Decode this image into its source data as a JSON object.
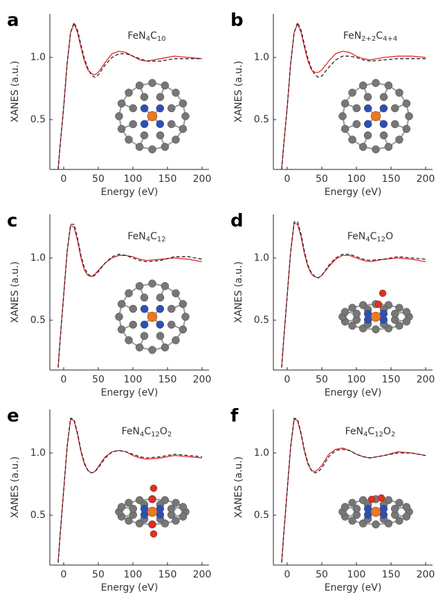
{
  "chart_data": [
    {
      "type": "line",
      "panel": "a",
      "annotation": "FeN4C10",
      "xlabel": "Energy (eV)",
      "ylabel": "XANES (a.u.)",
      "x": [
        -8,
        -5,
        0,
        5,
        10,
        15,
        20,
        25,
        30,
        35,
        40,
        45,
        50,
        60,
        70,
        80,
        90,
        100,
        110,
        120,
        140,
        160,
        180,
        200
      ],
      "series": [
        {
          "color": "#e8242a",
          "dash": false,
          "values": [
            0.1,
            0.3,
            0.6,
            0.95,
            1.2,
            1.27,
            1.2,
            1.08,
            0.97,
            0.9,
            0.87,
            0.86,
            0.88,
            0.96,
            1.03,
            1.05,
            1.04,
            1.01,
            0.98,
            0.97,
            0.99,
            1.01,
            1.0,
            0.99
          ]
        },
        {
          "color": "#222222",
          "dash": true,
          "values": [
            0.1,
            0.3,
            0.6,
            0.95,
            1.2,
            1.28,
            1.22,
            1.1,
            0.99,
            0.91,
            0.86,
            0.84,
            0.86,
            0.94,
            1.0,
            1.03,
            1.03,
            1.01,
            0.99,
            0.97,
            0.97,
            0.99,
            0.99,
            0.99
          ]
        }
      ],
      "xlim": [
        -20,
        210
      ],
      "ylim": [
        0.1,
        1.35
      ],
      "xticks": [
        0,
        50,
        100,
        150,
        200
      ],
      "yticks": [
        0.5,
        {
          "value": 1,
          "label": "1.0"
        }
      ]
    },
    {
      "type": "line",
      "panel": "b",
      "annotation": "FeN2+2C4+4",
      "xlabel": "Energy (eV)",
      "ylabel": "XANES (a.u.)",
      "x": [
        -8,
        -5,
        0,
        5,
        10,
        15,
        20,
        25,
        30,
        35,
        40,
        45,
        50,
        60,
        70,
        80,
        90,
        100,
        110,
        120,
        140,
        160,
        180,
        200
      ],
      "series": [
        {
          "color": "#e8242a",
          "dash": false,
          "values": [
            0.1,
            0.3,
            0.6,
            0.95,
            1.2,
            1.27,
            1.2,
            1.08,
            0.97,
            0.9,
            0.88,
            0.88,
            0.9,
            0.97,
            1.03,
            1.05,
            1.04,
            1.01,
            0.99,
            0.98,
            1.0,
            1.01,
            1.01,
            1.0
          ]
        },
        {
          "color": "#222222",
          "dash": true,
          "values": [
            0.1,
            0.3,
            0.6,
            0.95,
            1.2,
            1.28,
            1.22,
            1.1,
            0.99,
            0.91,
            0.86,
            0.84,
            0.85,
            0.92,
            0.98,
            1.01,
            1.01,
            1.0,
            0.98,
            0.97,
            0.98,
            0.99,
            0.99,
            0.99
          ]
        }
      ],
      "xlim": [
        -20,
        210
      ],
      "ylim": [
        0.1,
        1.35
      ],
      "xticks": [
        0,
        50,
        100,
        150,
        200
      ],
      "yticks": [
        0.5,
        {
          "value": 1,
          "label": "1.0"
        }
      ]
    },
    {
      "type": "line",
      "panel": "c",
      "annotation": "FeN4C12",
      "xlabel": "Energy (eV)",
      "ylabel": "XANES (a.u.)",
      "x": [
        -8,
        -5,
        0,
        5,
        10,
        15,
        20,
        25,
        30,
        35,
        40,
        45,
        50,
        60,
        70,
        80,
        90,
        100,
        110,
        120,
        140,
        160,
        180,
        200
      ],
      "series": [
        {
          "color": "#e8242a",
          "dash": false,
          "values": [
            0.12,
            0.35,
            0.7,
            1.05,
            1.26,
            1.25,
            1.14,
            1.0,
            0.9,
            0.86,
            0.85,
            0.87,
            0.9,
            0.96,
            1.0,
            1.02,
            1.02,
            1.01,
            0.99,
            0.98,
            0.99,
            1.0,
            0.99,
            0.97
          ]
        },
        {
          "color": "#222222",
          "dash": true,
          "values": [
            0.12,
            0.35,
            0.7,
            1.05,
            1.27,
            1.27,
            1.16,
            1.02,
            0.92,
            0.87,
            0.85,
            0.86,
            0.89,
            0.96,
            1.01,
            1.03,
            1.02,
            1.0,
            0.98,
            0.97,
            0.98,
            1.01,
            1.01,
            0.99
          ]
        }
      ],
      "xlim": [
        -20,
        210
      ],
      "ylim": [
        0.1,
        1.35
      ],
      "xticks": [
        0,
        50,
        100,
        150,
        200
      ],
      "yticks": [
        0.5,
        {
          "value": 1,
          "label": "1.0"
        }
      ]
    },
    {
      "type": "line",
      "panel": "d",
      "annotation": "FeN4C12O",
      "xlabel": "Energy (eV)",
      "ylabel": "XANES (a.u.)",
      "x": [
        -8,
        -5,
        0,
        5,
        10,
        15,
        20,
        25,
        30,
        35,
        40,
        45,
        50,
        60,
        70,
        80,
        90,
        100,
        110,
        120,
        140,
        160,
        180,
        200
      ],
      "series": [
        {
          "color": "#e8242a",
          "dash": false,
          "values": [
            0.12,
            0.35,
            0.7,
            1.05,
            1.28,
            1.27,
            1.17,
            1.03,
            0.93,
            0.87,
            0.85,
            0.84,
            0.86,
            0.93,
            0.99,
            1.02,
            1.02,
            1.0,
            0.98,
            0.97,
            0.99,
            1.0,
            0.99,
            0.97
          ]
        },
        {
          "color": "#222222",
          "dash": true,
          "values": [
            0.12,
            0.35,
            0.7,
            1.05,
            1.29,
            1.29,
            1.19,
            1.05,
            0.94,
            0.88,
            0.85,
            0.84,
            0.86,
            0.94,
            1.0,
            1.03,
            1.03,
            1.01,
            0.99,
            0.98,
            0.99,
            1.01,
            1.0,
            0.99
          ]
        }
      ],
      "xlim": [
        -20,
        210
      ],
      "ylim": [
        0.1,
        1.35
      ],
      "xticks": [
        0,
        50,
        100,
        150,
        200
      ],
      "yticks": [
        0.5,
        {
          "value": 1,
          "label": "1.0"
        }
      ]
    },
    {
      "type": "line",
      "panel": "e",
      "annotation": "FeN4C12O2",
      "xlabel": "Energy (eV)",
      "ylabel": "XANES (a.u.)",
      "x": [
        -8,
        -5,
        0,
        5,
        10,
        15,
        20,
        25,
        30,
        35,
        40,
        45,
        50,
        60,
        70,
        80,
        90,
        100,
        110,
        120,
        140,
        160,
        180,
        200
      ],
      "series": [
        {
          "color": "#e8242a",
          "dash": false,
          "values": [
            0.12,
            0.35,
            0.7,
            1.05,
            1.27,
            1.26,
            1.15,
            1.01,
            0.91,
            0.86,
            0.84,
            0.85,
            0.89,
            0.97,
            1.01,
            1.02,
            1.01,
            0.98,
            0.96,
            0.95,
            0.96,
            0.98,
            0.97,
            0.96
          ]
        },
        {
          "color": "#222222",
          "dash": true,
          "values": [
            0.12,
            0.35,
            0.7,
            1.05,
            1.28,
            1.27,
            1.16,
            1.02,
            0.92,
            0.86,
            0.84,
            0.85,
            0.88,
            0.96,
            1.01,
            1.02,
            1.01,
            0.99,
            0.97,
            0.96,
            0.97,
            0.99,
            0.98,
            0.97
          ]
        }
      ],
      "xlim": [
        -20,
        210
      ],
      "ylim": [
        0.1,
        1.35
      ],
      "xticks": [
        0,
        50,
        100,
        150,
        200
      ],
      "yticks": [
        0.5,
        {
          "value": 1,
          "label": "1.0"
        }
      ]
    },
    {
      "type": "line",
      "panel": "f",
      "annotation": "FeN4C12O2",
      "xlabel": "Energy (eV)",
      "ylabel": "XANES (a.u.)",
      "x": [
        -8,
        -5,
        0,
        5,
        10,
        15,
        20,
        25,
        30,
        35,
        40,
        45,
        50,
        60,
        70,
        80,
        90,
        100,
        110,
        120,
        140,
        160,
        180,
        200
      ],
      "series": [
        {
          "color": "#e8242a",
          "dash": false,
          "values": [
            0.12,
            0.35,
            0.7,
            1.05,
            1.27,
            1.26,
            1.15,
            1.01,
            0.91,
            0.86,
            0.85,
            0.87,
            0.9,
            0.99,
            1.03,
            1.04,
            1.02,
            0.99,
            0.97,
            0.96,
            0.98,
            1.01,
            1.0,
            0.98
          ]
        },
        {
          "color": "#222222",
          "dash": true,
          "values": [
            0.12,
            0.35,
            0.7,
            1.05,
            1.28,
            1.27,
            1.16,
            1.02,
            0.92,
            0.86,
            0.84,
            0.85,
            0.88,
            0.97,
            1.02,
            1.03,
            1.02,
            0.99,
            0.97,
            0.96,
            0.98,
            1.0,
            1.0,
            0.98
          ]
        }
      ],
      "xlim": [
        -20,
        210
      ],
      "ylim": [
        0.1,
        1.35
      ],
      "xticks": [
        0,
        50,
        100,
        150,
        200
      ],
      "yticks": [
        0.5,
        {
          "value": 1,
          "label": "1.0"
        }
      ]
    }
  ]
}
